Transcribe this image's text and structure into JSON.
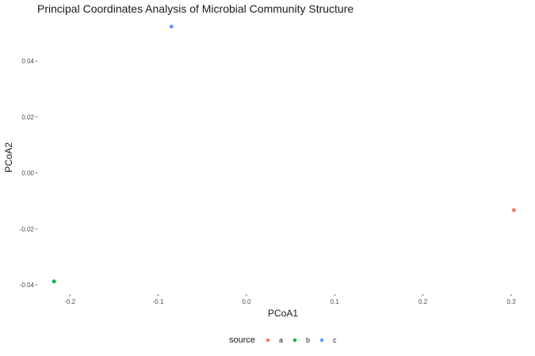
{
  "chart_data": {
    "type": "scatter",
    "title": "Principal Coordinates Analysis of Microbial Community Structure",
    "xlabel": "PCoA1",
    "ylabel": "PCoA2",
    "x_ticks": [
      "-0.2",
      "-0.1",
      "0.0",
      "0.1",
      "0.2",
      "0.3"
    ],
    "x_tick_values": [
      -0.2,
      -0.1,
      0.0,
      0.1,
      0.2,
      0.3
    ],
    "y_ticks": [
      "-0.04",
      "-0.02",
      "0.00",
      "0.02",
      "0.04"
    ],
    "y_tick_values": [
      -0.04,
      -0.02,
      0.0,
      0.02,
      0.04
    ],
    "xlim": [
      -0.237,
      0.318
    ],
    "ylim": [
      -0.0434,
      0.0556
    ],
    "grid": false,
    "legend": {
      "title": "source",
      "position": "bottom"
    },
    "series": [
      {
        "name": "a",
        "color": "#F8766D",
        "points": [
          {
            "x": 0.303,
            "y": -0.0133
          }
        ]
      },
      {
        "name": "b",
        "color": "#00BA38",
        "points": [
          {
            "x": -0.218,
            "y": -0.0388
          }
        ]
      },
      {
        "name": "c",
        "color": "#619CFF",
        "points": [
          {
            "x": -0.085,
            "y": 0.0523
          }
        ]
      }
    ]
  }
}
